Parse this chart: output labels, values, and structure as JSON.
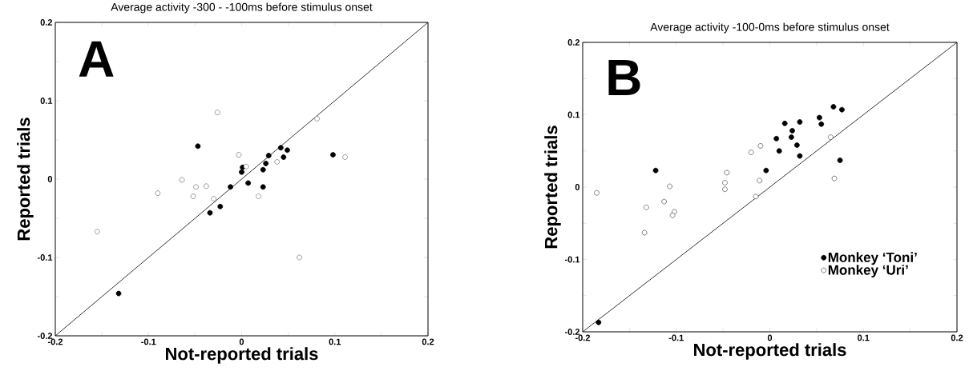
{
  "chart_data": [
    {
      "type": "scatter",
      "title": "Average activity -300 - -100ms before stimulus onset",
      "xlabel": "Not-reported trials",
      "ylabel": "Reported trials",
      "annotations": [
        "A"
      ],
      "xlim": [
        -0.2,
        0.2
      ],
      "ylim": [
        -0.2,
        0.2
      ],
      "xticks": [
        -0.2,
        {
          "value": -0.15,
          "label": null
        },
        -0.1,
        {
          "value": -0.05,
          "label": null
        },
        0,
        {
          "value": 0.05,
          "label": null
        },
        0.1,
        {
          "value": 0.15,
          "label": null
        },
        0.2
      ],
      "yticks": [
        -0.2,
        {
          "value": -0.15,
          "label": null
        },
        -0.1,
        {
          "value": -0.05,
          "label": null
        },
        0,
        {
          "value": 0.05,
          "label": null
        },
        0.1,
        {
          "value": 0.15,
          "label": null
        },
        0.2
      ],
      "series": [
        {
          "color": "#000000",
          "marker": "circle",
          "x": [
            -0.047,
            0.098,
            0.042,
            0.049,
            0.045,
            0.029,
            0.026,
            0.023,
            0.001,
            0.0,
            0.007,
            -0.012,
            0.023,
            -0.023,
            -0.034,
            -0.132
          ],
          "values": [
            0.042,
            0.031,
            0.04,
            0.037,
            0.028,
            0.03,
            0.02,
            0.012,
            0.015,
            0.009,
            -0.005,
            -0.01,
            -0.01,
            -0.035,
            -0.043,
            -0.146
          ]
        },
        {
          "color": "#808080",
          "marker": "circle",
          "x": [
            -0.026,
            0.081,
            -0.003,
            0.111,
            0.038,
            0.005,
            -0.064,
            -0.049,
            -0.038,
            -0.052,
            -0.09,
            -0.03,
            0.018,
            -0.155,
            0.062
          ],
          "values": [
            0.085,
            0.077,
            0.031,
            0.028,
            0.022,
            0.016,
            -0.001,
            -0.01,
            -0.009,
            -0.022,
            -0.018,
            -0.025,
            -0.022,
            -0.067,
            -0.1
          ]
        },
        {
          "type": "line",
          "color": "#000000",
          "x": [
            -0.2,
            0.2
          ],
          "values": [
            -0.2,
            0.2
          ]
        }
      ]
    },
    {
      "type": "scatter",
      "title": "Average activity -100-0ms before stimulus onset",
      "xlabel": "Not-reported trials",
      "ylabel": "Reported trials",
      "annotations": [
        "B"
      ],
      "xlim": [
        -0.2,
        0.2
      ],
      "ylim": [
        -0.2,
        0.2
      ],
      "xticks": [
        -0.2,
        {
          "value": -0.15,
          "label": null
        },
        -0.1,
        {
          "value": -0.05,
          "label": null
        },
        0,
        {
          "value": 0.05,
          "label": null
        },
        0.1,
        {
          "value": 0.15,
          "label": null
        },
        0.2
      ],
      "yticks": [
        -0.2,
        {
          "value": -0.15,
          "label": null
        },
        -0.1,
        {
          "value": -0.05,
          "label": null
        },
        0,
        {
          "value": 0.05,
          "label": null
        },
        0.1,
        {
          "value": 0.15,
          "label": null
        },
        0.2
      ],
      "legend": "bottom right",
      "series": [
        {
          "name": "Monkey ‘Toni’",
          "color": "#000000",
          "marker": "circle",
          "x": [
            0.068,
            0.077,
            0.053,
            0.055,
            0.016,
            0.032,
            0.024,
            0.007,
            0.023,
            0.029,
            0.01,
            0.032,
            0.075,
            -0.004,
            -0.122,
            -0.183
          ],
          "values": [
            0.111,
            0.107,
            0.096,
            0.087,
            0.088,
            0.09,
            0.078,
            0.067,
            0.069,
            0.058,
            0.05,
            0.043,
            0.037,
            0.023,
            0.023,
            -0.187
          ]
        },
        {
          "name": "Monkey ‘Uri’",
          "color": "#606060",
          "marker": "circle",
          "x": [
            0.065,
            -0.01,
            -0.02,
            -0.046,
            -0.048,
            -0.048,
            -0.011,
            0.069,
            -0.015,
            -0.107,
            -0.185,
            -0.113,
            -0.132,
            -0.102,
            -0.104,
            -0.134
          ],
          "values": [
            0.069,
            0.057,
            0.048,
            0.02,
            0.006,
            -0.003,
            0.009,
            0.012,
            -0.013,
            0.001,
            -0.008,
            -0.02,
            -0.028,
            -0.034,
            -0.039,
            -0.063
          ]
        },
        {
          "type": "line",
          "color": "#000000",
          "x": [
            -0.2,
            0.2
          ],
          "values": [
            -0.2,
            0.2
          ]
        }
      ]
    }
  ]
}
